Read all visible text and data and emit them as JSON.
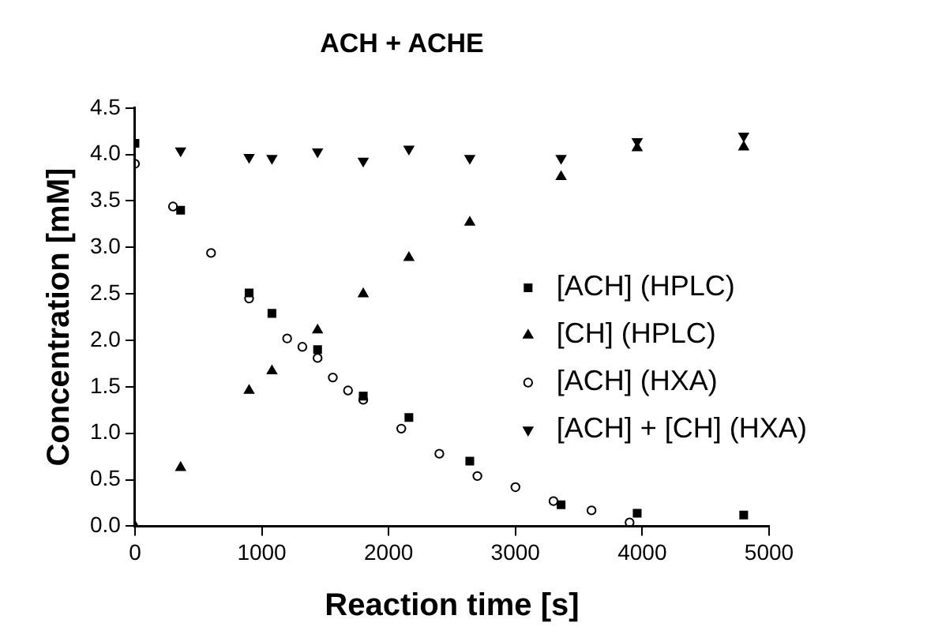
{
  "chart_data": {
    "type": "scatter",
    "title": "ACH + ACHE",
    "xlabel": "Reaction time [s]",
    "ylabel": "Concentration [mM]",
    "xlim": [
      0,
      5000
    ],
    "xticks": [
      0,
      1000,
      2000,
      3000,
      4000,
      5000
    ],
    "ylim": [
      0,
      4.5
    ],
    "yticks": [
      {
        "value": 0,
        "label": "0.0"
      },
      0.5,
      {
        "value": 1,
        "label": "1.0"
      },
      1.5,
      {
        "value": 2,
        "label": "2.0"
      },
      2.5,
      {
        "value": 3,
        "label": "3.0"
      },
      3.5,
      {
        "value": 4,
        "label": "4.0"
      },
      4.5
    ],
    "grid": false,
    "legend": "right",
    "series": [
      {
        "name": "[ACH] (HPLC)",
        "color": "#000000",
        "marker": "square",
        "x": [
          0,
          360,
          900,
          1080,
          1440,
          1800,
          2160,
          2640,
          3360,
          3960,
          4800
        ],
        "values": [
          4.12,
          3.4,
          2.51,
          2.29,
          1.9,
          1.4,
          1.17,
          0.7,
          0.23,
          0.14,
          0.12
        ]
      },
      {
        "name": "[CH] (HPLC)",
        "color": "#000000",
        "marker": "triangle",
        "x": [
          0,
          360,
          900,
          1080,
          1440,
          1800,
          2160,
          2640,
          3360,
          3960,
          4800
        ],
        "values": [
          0,
          0.63,
          1.46,
          1.67,
          2.11,
          2.5,
          2.89,
          3.27,
          3.76,
          4.07,
          4.08
        ]
      },
      {
        "name": "[ACH] (HXA)",
        "color": "#000000",
        "marker": "circle",
        "x": [
          0,
          300,
          600,
          900,
          1200,
          1320,
          1440,
          1560,
          1680,
          1800,
          2100,
          2400,
          2700,
          3000,
          3300,
          3600,
          3900
        ],
        "values": [
          3.9,
          3.44,
          2.94,
          2.45,
          2.02,
          1.93,
          1.81,
          1.6,
          1.46,
          1.36,
          1.05,
          0.78,
          0.54,
          0.42,
          0.27,
          0.17,
          0.04
        ]
      },
      {
        "name": "[ACH] + [CH] (HXA)",
        "color": "#000000",
        "marker": "triangle-down",
        "x": [
          360,
          900,
          1080,
          1440,
          1800,
          2160,
          2640,
          3360,
          3960,
          4800
        ],
        "values": [
          4.04,
          3.97,
          3.96,
          4.03,
          3.93,
          4.06,
          3.96,
          3.96,
          4.14,
          4.2
        ]
      }
    ]
  }
}
